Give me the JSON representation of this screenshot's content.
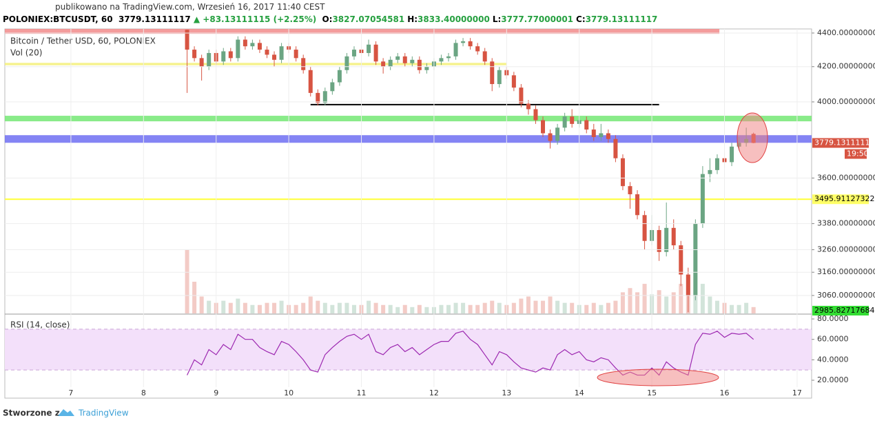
{
  "header": {
    "published": "publikowano na TradingView.com, Wrzesień 16, 2017 11:40 CEST",
    "symbol": "POLONIEX:BTCUSDT, 60",
    "last": "3779.13111117",
    "change": "▲ +83.13111115 (+2.25%)",
    "quote": [
      {
        "label": "O:",
        "value": "3827.07054581"
      },
      {
        "label": "H:",
        "value": "3833.40000000"
      },
      {
        "label": "L:",
        "value": "3777.77000001"
      },
      {
        "label": "C:",
        "value": "3779.13111117"
      }
    ]
  },
  "chart_data": {
    "type": "candlestick",
    "title": "Bitcoin / Tether USD, 60, POLONIEX",
    "volume_title": "Vol (20)",
    "log_scale": true,
    "up_color": "#6ba583",
    "down_color": "#d75442",
    "xlim": [
      6.09,
      17.2
    ],
    "xticks": [
      7,
      8,
      9,
      10,
      11,
      12,
      13,
      14,
      15,
      16,
      17
    ],
    "ylim": [
      2985,
      4425
    ],
    "yticks": [
      {
        "value": 4400,
        "label": "4400.00000000"
      },
      {
        "value": 4200,
        "label": "4200.00000000"
      },
      {
        "value": 4000,
        "label": "4000.00000000"
      },
      {
        "value": 3600,
        "label": "3600.00000000"
      },
      {
        "value": 3380,
        "label": "3380.00000000"
      },
      {
        "value": 3260,
        "label": "3260.00000000"
      },
      {
        "value": 3160,
        "label": "3160.00000000"
      },
      {
        "value": 3060,
        "label": "3060.00000000"
      }
    ],
    "x": [
      8.6,
      8.7,
      8.8,
      8.9,
      9.0,
      9.1,
      9.2,
      9.3,
      9.4,
      9.5,
      9.6,
      9.7,
      9.8,
      9.9,
      10.0,
      10.1,
      10.2,
      10.3,
      10.4,
      10.5,
      10.6,
      10.7,
      10.8,
      10.9,
      11.0,
      11.1,
      11.2,
      11.3,
      11.4,
      11.5,
      11.6,
      11.7,
      11.8,
      11.9,
      12.0,
      12.1,
      12.2,
      12.3,
      12.4,
      12.5,
      12.6,
      12.7,
      12.8,
      12.9,
      13.0,
      13.1,
      13.2,
      13.3,
      13.4,
      13.5,
      13.6,
      13.7,
      13.8,
      13.9,
      14.0,
      14.1,
      14.2,
      14.3,
      14.4,
      14.5,
      14.6,
      14.7,
      14.8,
      14.9,
      15.0,
      15.1,
      15.2,
      15.3,
      15.4,
      15.5,
      15.6,
      15.7,
      15.8,
      15.9,
      16.0,
      16.1,
      16.2,
      16.3,
      16.4
    ],
    "open": [
      4420,
      4300,
      4250,
      4200,
      4280,
      4230,
      4290,
      4250,
      4360,
      4320,
      4340,
      4300,
      4270,
      4240,
      4320,
      4300,
      4250,
      4180,
      4050,
      3995,
      4060,
      4110,
      4180,
      4260,
      4300,
      4280,
      4330,
      4230,
      4200,
      4240,
      4260,
      4220,
      4240,
      4180,
      4200,
      4230,
      4250,
      4260,
      4340,
      4350,
      4320,
      4290,
      4230,
      4100,
      4180,
      4150,
      4080,
      3990,
      3960,
      3900,
      3830,
      3790,
      3860,
      3920,
      3880,
      3900,
      3850,
      3810,
      3830,
      3800,
      3700,
      3560,
      3520,
      3420,
      3300,
      3350,
      3250,
      3360,
      3280,
      3150,
      3060,
      3380,
      3620,
      3640,
      3700,
      3680,
      3760,
      3780,
      3827.07054581
    ],
    "high": [
      4420,
      4320,
      4270,
      4300,
      4300,
      4310,
      4310,
      4380,
      4380,
      4360,
      4360,
      4320,
      4290,
      4340,
      4340,
      4320,
      4270,
      4200,
      4070,
      4080,
      4130,
      4200,
      4280,
      4320,
      4320,
      4360,
      4350,
      4250,
      4260,
      4280,
      4280,
      4260,
      4260,
      4220,
      4250,
      4270,
      4280,
      4360,
      4370,
      4370,
      4340,
      4310,
      4250,
      4200,
      4200,
      4170,
      4100,
      4010,
      3980,
      3920,
      3850,
      3880,
      3940,
      3960,
      3920,
      3920,
      3880,
      3880,
      3850,
      3820,
      3720,
      3580,
      3540,
      3440,
      3420,
      3370,
      3480,
      3400,
      3300,
      3180,
      3400,
      3660,
      3700,
      3720,
      3730,
      3780,
      3810,
      3860,
      3833.4
    ],
    "low": [
      4050,
      4230,
      4120,
      4180,
      4210,
      4210,
      4230,
      4230,
      4300,
      4300,
      4280,
      4250,
      4200,
      4220,
      4280,
      4230,
      4160,
      4030,
      3980,
      3980,
      4040,
      4090,
      4160,
      4240,
      4260,
      4260,
      4210,
      4160,
      4180,
      4220,
      4200,
      4200,
      4160,
      4160,
      4180,
      4210,
      4230,
      4240,
      4320,
      4300,
      4270,
      4210,
      4060,
      4080,
      4130,
      4060,
      3970,
      3930,
      3880,
      3810,
      3750,
      3770,
      3840,
      3860,
      3860,
      3830,
      3790,
      3790,
      3780,
      3680,
      3540,
      3450,
      3400,
      3260,
      3280,
      3210,
      3230,
      3260,
      3100,
      2990,
      3040,
      3360,
      3580,
      3620,
      3650,
      3660,
      3740,
      3760,
      3777.77000001
    ],
    "close": [
      4300,
      4250,
      4200,
      4280,
      4230,
      4290,
      4250,
      4360,
      4320,
      4340,
      4300,
      4270,
      4240,
      4320,
      4300,
      4250,
      4180,
      4050,
      3995,
      4060,
      4110,
      4180,
      4260,
      4300,
      4280,
      4330,
      4230,
      4200,
      4240,
      4260,
      4220,
      4240,
      4180,
      4200,
      4230,
      4250,
      4260,
      4340,
      4350,
      4320,
      4290,
      4230,
      4100,
      4180,
      4150,
      4080,
      3990,
      3960,
      3900,
      3830,
      3790,
      3860,
      3920,
      3880,
      3900,
      3850,
      3810,
      3830,
      3800,
      3700,
      3560,
      3520,
      3420,
      3300,
      3350,
      3250,
      3360,
      3280,
      3150,
      3060,
      3380,
      3620,
      3640,
      3700,
      3680,
      3760,
      3780,
      3800,
      3779.13111117
    ],
    "volume": [
      30,
      15,
      8,
      6,
      5,
      6,
      5,
      7,
      5,
      4,
      4,
      5,
      5,
      6,
      4,
      4,
      5,
      8,
      6,
      5,
      4,
      5,
      5,
      4,
      4,
      6,
      5,
      4,
      4,
      3,
      4,
      3,
      4,
      3,
      3,
      4,
      4,
      5,
      5,
      4,
      4,
      5,
      6,
      5,
      4,
      5,
      7,
      8,
      6,
      6,
      8,
      6,
      5,
      5,
      4,
      4,
      5,
      4,
      5,
      6,
      10,
      12,
      10,
      14,
      9,
      11,
      8,
      10,
      14,
      18,
      20,
      14,
      8,
      6,
      5,
      4,
      4,
      5,
      3
    ],
    "zones": [
      {
        "low": 4395,
        "high": 4425,
        "x": [
          6.09,
          15.93
        ],
        "color": "#f28b8b"
      },
      {
        "low": 4208,
        "high": 4222,
        "x": [
          6.09,
          13.0
        ],
        "color": "#f5f07a"
      },
      {
        "low": 3894,
        "high": 3924,
        "x": [
          6.09,
          17.2
        ],
        "color": "#74e874"
      },
      {
        "low": 3780,
        "high": 3820,
        "x": [
          6.09,
          17.2
        ],
        "color": "#6f6ff2"
      }
    ],
    "lines": [
      {
        "value": 3985,
        "x": [
          10.3,
          15.1
        ],
        "color": "#000000"
      },
      {
        "value": 3495.91127322,
        "x": [
          6.09,
          17.2
        ],
        "color": "#ffff33"
      }
    ],
    "price_labels": [
      {
        "value": 3779.13111117,
        "label": "3779.13111117",
        "color": "#d75442",
        "note": "19:50"
      },
      {
        "value": 3495.91127322,
        "label": "3495.91127322",
        "color": "#ffff66"
      },
      {
        "value": 2985.82717684,
        "label": "2985.82717684",
        "color": "#33dd33"
      }
    ],
    "rsi": {
      "title": "RSI (14, close)",
      "color": "#9c27b0",
      "ylim": [
        14.6,
        83.4
      ],
      "band": [
        30,
        70
      ],
      "yticks": [
        {
          "value": 80,
          "label": "80.0000"
        },
        {
          "value": 60,
          "label": "60.0000"
        },
        {
          "value": 40,
          "label": "40.0000"
        },
        {
          "value": 20,
          "label": "20.0000"
        }
      ],
      "values": [
        25,
        40,
        35,
        50,
        45,
        55,
        50,
        65,
        60,
        60,
        52,
        48,
        45,
        58,
        55,
        48,
        40,
        30,
        28,
        45,
        52,
        58,
        63,
        65,
        60,
        65,
        48,
        45,
        52,
        55,
        48,
        52,
        45,
        50,
        55,
        58,
        58,
        66,
        68,
        60,
        55,
        45,
        35,
        48,
        45,
        38,
        32,
        30,
        28,
        32,
        30,
        45,
        50,
        45,
        48,
        40,
        38,
        42,
        40,
        32,
        25,
        28,
        25,
        25,
        32,
        25,
        38,
        32,
        28,
        25,
        55,
        66,
        65,
        68,
        62,
        66,
        65,
        66,
        60
      ]
    }
  },
  "footer": {
    "made_with": "Stworzone z",
    "brand": "TradingView"
  }
}
